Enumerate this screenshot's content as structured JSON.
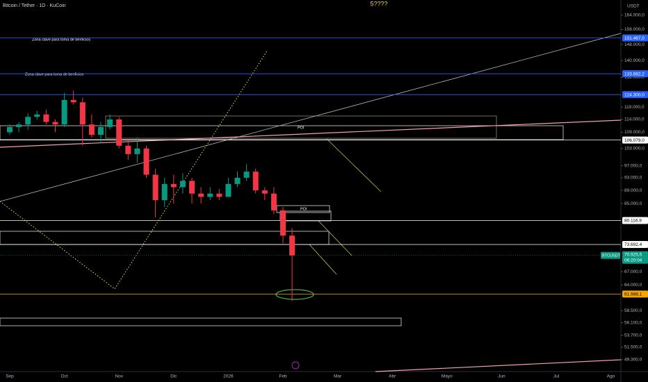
{
  "header": {
    "symbol": "Bitcoin / Tether · 1D · KuCoin",
    "title": "5????",
    "currency": "USDT"
  },
  "annotations": [
    "Zona clave para toma de benficios",
    "Zona clave para toma de benficios",
    "POI",
    "POI"
  ],
  "chart_data": {
    "type": "candlestick",
    "log_scale": true,
    "categories": [
      "Sep",
      null,
      null,
      null,
      null,
      null,
      "Oct",
      null,
      null,
      null,
      null,
      null,
      "Nov",
      null,
      null,
      null,
      null,
      null,
      "Dic",
      null,
      null,
      null,
      null,
      null,
      "2026",
      null,
      null,
      null,
      null,
      null,
      "Feb",
      null,
      null,
      null,
      null,
      null,
      "Mar",
      null,
      null,
      null,
      null,
      null,
      "Abr",
      null,
      null,
      null,
      null,
      null,
      "Mayo",
      null,
      null,
      null,
      null,
      null,
      "Jun",
      null,
      null,
      null,
      null,
      null,
      "Jul",
      null,
      null,
      null,
      null,
      null,
      "Ago"
    ],
    "open": [
      109000,
      111000,
      112000,
      115000,
      116000,
      113000,
      112000,
      122000,
      121000,
      112000,
      108000,
      111000,
      114000,
      104000,
      101000,
      103000,
      94000,
      86000,
      91000,
      90000,
      92000,
      88000,
      87000,
      88000,
      87000,
      91000,
      93000,
      95000,
      89000,
      88000,
      83000,
      76000,
      null,
      null,
      null,
      null,
      null,
      null,
      null,
      null,
      null,
      null,
      null,
      null,
      null,
      null,
      null,
      null,
      null,
      null,
      null,
      null,
      null,
      null,
      null,
      null,
      null,
      null,
      null,
      null,
      null,
      null,
      null,
      null,
      null,
      null,
      null
    ],
    "high": [
      112000,
      113000,
      116500,
      117500,
      118000,
      114000,
      125000,
      126000,
      123000,
      116000,
      113000,
      116000,
      115000,
      106000,
      107000,
      104000,
      96000,
      93000,
      94000,
      94500,
      93000,
      90000,
      90000,
      89500,
      93000,
      95000,
      97500,
      96000,
      90000,
      90000,
      84000,
      78000,
      null,
      null,
      null,
      null,
      null,
      null,
      null,
      null,
      null,
      null,
      null,
      null,
      null,
      null,
      null,
      null,
      null,
      null,
      null,
      null,
      null,
      null,
      null,
      null,
      null,
      null,
      null,
      null,
      null,
      null,
      null,
      null,
      null,
      null,
      null
    ],
    "low": [
      108000,
      109000,
      110000,
      114000,
      112000,
      109000,
      111000,
      120000,
      104000,
      107000,
      105000,
      110000,
      103000,
      99000,
      98000,
      93000,
      81000,
      84000,
      85000,
      88000,
      85000,
      85000,
      86000,
      86000,
      87000,
      90000,
      92000,
      88000,
      86000,
      82000,
      74000,
      60500,
      null,
      null,
      null,
      null,
      null,
      null,
      null,
      null,
      null,
      null,
      null,
      null,
      null,
      null,
      null,
      null,
      null,
      null,
      null,
      null,
      null,
      null,
      null,
      null,
      null,
      null,
      null,
      null,
      null,
      null,
      null,
      null,
      null,
      null,
      null
    ],
    "close": [
      111000,
      112000,
      115000,
      116000,
      113000,
      112000,
      122000,
      121000,
      112000,
      108000,
      111000,
      114000,
      104000,
      101000,
      103000,
      94000,
      86000,
      91000,
      90000,
      92000,
      88000,
      87000,
      88000,
      87000,
      91000,
      93000,
      95000,
      89000,
      88000,
      83000,
      76000,
      70925.5,
      null,
      null,
      null,
      null,
      null,
      null,
      null,
      null,
      null,
      null,
      null,
      null,
      null,
      null,
      null,
      null,
      null,
      null,
      null,
      null,
      null,
      null,
      null,
      null,
      null,
      null,
      null,
      null,
      null,
      null,
      null,
      null,
      null,
      null,
      null
    ],
    "up_color": "#089981",
    "down_color": "#f23645",
    "ylim": [
      47300,
      172900
    ],
    "yticks": [
      {
        "value": 164000,
        "label": "164.000,0"
      },
      {
        "value": 156000,
        "label": "156.000,0"
      },
      {
        "value": 148000,
        "label": "148.000,0"
      },
      {
        "value": 140000,
        "label": "140.000,0"
      },
      {
        "value": 132000,
        "label": "132.000,0"
      },
      {
        "value": 119000,
        "label": "119.000,0"
      },
      {
        "value": 114000,
        "label": "114.000,0"
      },
      {
        "value": 109000,
        "label": "109.000,0"
      },
      {
        "value": 103000,
        "label": "103.000,0"
      },
      {
        "value": 97000,
        "label": "97.000,0"
      },
      {
        "value": 93000,
        "label": "93.000,0"
      },
      {
        "value": 89000,
        "label": "89.000,0"
      },
      {
        "value": 85000,
        "label": "85.000,0"
      },
      {
        "value": 67000,
        "label": "67.000,0"
      },
      {
        "value": 64000,
        "label": "64.000,0"
      },
      {
        "value": 58500,
        "label": "58.500,0"
      },
      {
        "value": 56100,
        "label": "56.100,0"
      },
      {
        "value": 53700,
        "label": "53.700,0"
      },
      {
        "value": 51500,
        "label": "51.500,0"
      },
      {
        "value": 49300,
        "label": "49.300,0"
      }
    ],
    "price_lines": [
      {
        "value": 151467,
        "label": "151.467,0",
        "color": "#2962ff"
      },
      {
        "value": 133682.2,
        "label": "133.682,2",
        "color": "#2962ff"
      },
      {
        "value": 124300,
        "label": "124.300,0",
        "color": "#2962ff"
      },
      {
        "value": 106079,
        "label": "106.079,0",
        "color": "#ffffff"
      },
      {
        "value": 80116.9,
        "label": "80.116,9",
        "color": "#ffffff"
      },
      {
        "value": 73692.4,
        "label": "73.692,4",
        "color": "#ffffff"
      },
      {
        "value": 61988.1,
        "label": "61.988,1",
        "color": "#f7a600"
      }
    ],
    "last_price": {
      "name": "BTCUSDT",
      "value": 70925.5,
      "label": "70.925,5",
      "countdown": "06:20:04",
      "color": "#089981"
    }
  }
}
